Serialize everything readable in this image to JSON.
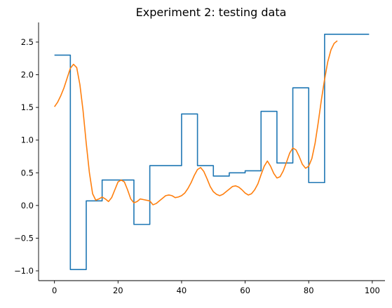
{
  "chart_data": {
    "type": "line",
    "title": "Experiment 2: testing data",
    "xlabel": "",
    "ylabel": "",
    "xlim": [
      -5,
      104
    ],
    "ylim": [
      -1.15,
      2.8
    ],
    "grid": false,
    "x_ticks": [
      0,
      20,
      40,
      60,
      80,
      100
    ],
    "x_tick_labels": [
      "0",
      "20",
      "40",
      "60",
      "80",
      "100"
    ],
    "y_ticks": [
      -1.0,
      -0.5,
      0.0,
      0.5,
      1.0,
      1.5,
      2.0,
      2.5
    ],
    "y_tick_labels": [
      "−1.0",
      "−0.5",
      "0.0",
      "0.5",
      "1.0",
      "1.5",
      "2.0",
      "2.5"
    ],
    "series": [
      {
        "color": "#1f77b4",
        "step": true,
        "values": [
          2.3,
          2.3,
          2.3,
          2.3,
          2.3,
          -0.98,
          -0.98,
          -0.98,
          -0.98,
          -0.98,
          0.07,
          0.07,
          0.07,
          0.07,
          0.07,
          0.39,
          0.39,
          0.39,
          0.39,
          0.39,
          0.39,
          0.39,
          0.39,
          0.39,
          0.39,
          -0.29,
          -0.29,
          -0.29,
          -0.29,
          -0.29,
          0.61,
          0.61,
          0.61,
          0.61,
          0.61,
          0.61,
          0.61,
          0.61,
          0.61,
          0.61,
          1.4,
          1.4,
          1.4,
          1.4,
          1.4,
          0.61,
          0.61,
          0.61,
          0.61,
          0.61,
          0.45,
          0.45,
          0.45,
          0.45,
          0.45,
          0.5,
          0.5,
          0.5,
          0.5,
          0.5,
          0.53,
          0.53,
          0.53,
          0.53,
          0.53,
          1.44,
          1.44,
          1.44,
          1.44,
          1.44,
          0.65,
          0.65,
          0.65,
          0.65,
          0.65,
          1.8,
          1.8,
          1.8,
          1.8,
          1.8,
          0.35,
          0.35,
          0.35,
          0.35,
          0.35,
          2.62,
          2.62,
          2.62,
          2.62,
          2.62,
          2.62,
          2.62,
          2.62,
          2.62,
          2.62,
          2.62,
          2.62,
          2.62,
          2.62,
          2.62
        ]
      },
      {
        "color": "#ff7f0e",
        "step": false,
        "values": [
          1.51,
          1.58,
          1.68,
          1.8,
          1.95,
          2.1,
          2.16,
          2.11,
          1.85,
          1.45,
          0.95,
          0.5,
          0.18,
          0.08,
          0.1,
          0.13,
          0.1,
          0.06,
          0.12,
          0.24,
          0.36,
          0.39,
          0.36,
          0.24,
          0.1,
          0.04,
          0.06,
          0.1,
          0.09,
          0.08,
          0.07,
          0.01,
          0.03,
          0.07,
          0.11,
          0.15,
          0.16,
          0.15,
          0.12,
          0.13,
          0.15,
          0.19,
          0.26,
          0.35,
          0.46,
          0.55,
          0.58,
          0.52,
          0.41,
          0.29,
          0.21,
          0.17,
          0.15,
          0.17,
          0.21,
          0.25,
          0.29,
          0.3,
          0.28,
          0.24,
          0.19,
          0.16,
          0.18,
          0.24,
          0.33,
          0.47,
          0.6,
          0.68,
          0.6,
          0.49,
          0.42,
          0.44,
          0.53,
          0.66,
          0.8,
          0.88,
          0.85,
          0.75,
          0.63,
          0.57,
          0.6,
          0.72,
          0.95,
          1.27,
          1.62,
          1.93,
          2.2,
          2.38,
          2.48,
          2.52
        ]
      }
    ]
  }
}
